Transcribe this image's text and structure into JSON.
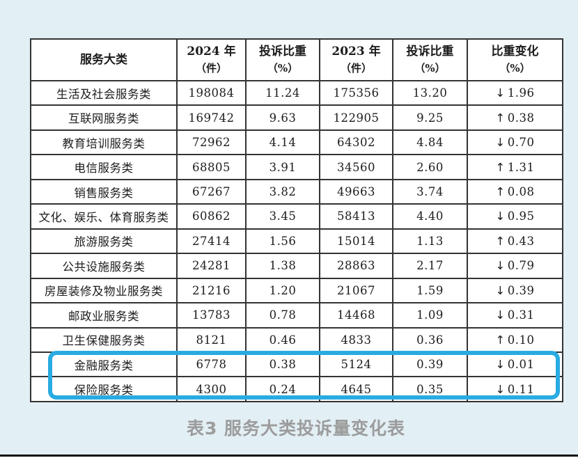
{
  "colors": {
    "page_background": "#e2eff5",
    "table_border": "#333333",
    "highlight_blue": "#29abe2",
    "caption_gray": "#9c9c9c"
  },
  "table": {
    "headers": [
      {
        "line1": "服务大类",
        "line2": ""
      },
      {
        "line1": "2024 年",
        "line2": "（件）"
      },
      {
        "line1": "投诉比重",
        "line2": "（%）"
      },
      {
        "line1": "2023 年",
        "line2": "（件）"
      },
      {
        "line1": "投诉比重",
        "line2": "（%）"
      },
      {
        "line1": "比重变化",
        "line2": "（%）"
      }
    ],
    "rows": [
      {
        "category": "生活及社会服务类",
        "count_2024": "198084",
        "share_2024": "11.24",
        "count_2023": "175356",
        "share_2023": "13.20",
        "change_arrow": "↓",
        "change_value": "1.96",
        "highlighted": false
      },
      {
        "category": "互联网服务类",
        "count_2024": "169742",
        "share_2024": "9.63",
        "count_2023": "122905",
        "share_2023": "9.25",
        "change_arrow": "↑",
        "change_value": "0.38",
        "highlighted": false
      },
      {
        "category": "教育培训服务类",
        "count_2024": "72962",
        "share_2024": "4.14",
        "count_2023": "64302",
        "share_2023": "4.84",
        "change_arrow": "↓",
        "change_value": "0.70",
        "highlighted": false
      },
      {
        "category": "电信服务类",
        "count_2024": "68805",
        "share_2024": "3.91",
        "count_2023": "34560",
        "share_2023": "2.60",
        "change_arrow": "↑",
        "change_value": "1.31",
        "highlighted": false
      },
      {
        "category": "销售服务类",
        "count_2024": "67267",
        "share_2024": "3.82",
        "count_2023": "49663",
        "share_2023": "3.74",
        "change_arrow": "↑",
        "change_value": "0.08",
        "highlighted": false
      },
      {
        "category": "文化、娱乐、体育服务类",
        "count_2024": "60862",
        "share_2024": "3.45",
        "count_2023": "58413",
        "share_2023": "4.40",
        "change_arrow": "↓",
        "change_value": "0.95",
        "highlighted": false
      },
      {
        "category": "旅游服务类",
        "count_2024": "27414",
        "share_2024": "1.56",
        "count_2023": "15014",
        "share_2023": "1.13",
        "change_arrow": "↑",
        "change_value": "0.43",
        "highlighted": false
      },
      {
        "category": "公共设施服务类",
        "count_2024": "24281",
        "share_2024": "1.38",
        "count_2023": "28863",
        "share_2023": "2.17",
        "change_arrow": "↓",
        "change_value": "0.79",
        "highlighted": false
      },
      {
        "category": "房屋装修及物业服务类",
        "count_2024": "21216",
        "share_2024": "1.20",
        "count_2023": "21067",
        "share_2023": "1.59",
        "change_arrow": "↓",
        "change_value": "0.39",
        "highlighted": false
      },
      {
        "category": "邮政业服务类",
        "count_2024": "13783",
        "share_2024": "0.78",
        "count_2023": "14468",
        "share_2023": "1.09",
        "change_arrow": "↓",
        "change_value": "0.31",
        "highlighted": false
      },
      {
        "category": "卫生保健服务类",
        "count_2024": "8121",
        "share_2024": "0.46",
        "count_2023": "4833",
        "share_2023": "0.36",
        "change_arrow": "↑",
        "change_value": "0.10",
        "highlighted": false
      },
      {
        "category": "金融服务类",
        "count_2024": "6778",
        "share_2024": "0.38",
        "count_2023": "5124",
        "share_2023": "0.39",
        "change_arrow": "↓",
        "change_value": "0.01",
        "highlighted": true
      },
      {
        "category": "保险服务类",
        "count_2024": "4300",
        "share_2024": "0.24",
        "count_2023": "4645",
        "share_2023": "0.35",
        "change_arrow": "↓",
        "change_value": "0.11",
        "highlighted": true
      }
    ]
  },
  "caption": "表3 服务大类投诉量变化表"
}
